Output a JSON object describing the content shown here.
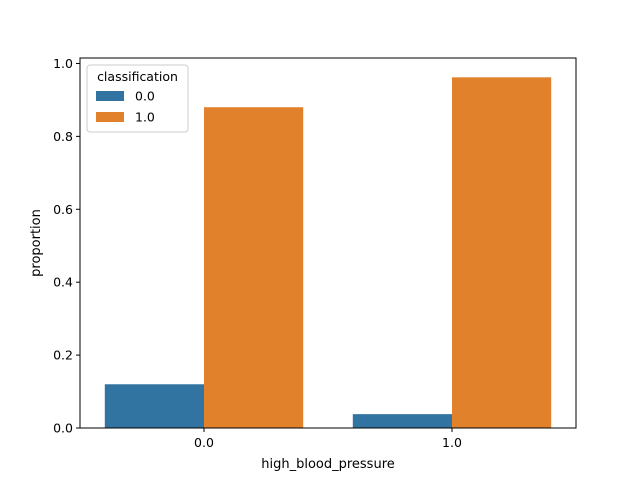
{
  "chart_data": {
    "type": "bar",
    "title": "",
    "xlabel": "high_blood_pressure",
    "ylabel": "proportion",
    "categories": [
      "0.0",
      "1.0"
    ],
    "series": [
      {
        "name": "0.0",
        "values": [
          0.12,
          0.038
        ],
        "color": "#3274a1"
      },
      {
        "name": "1.0",
        "values": [
          0.88,
          0.962
        ],
        "color": "#e1812c"
      }
    ],
    "ylim": [
      0,
      1.0
    ],
    "yticks": [
      0.0,
      0.2,
      0.4,
      0.6,
      0.8,
      1.0
    ],
    "ytick_labels": [
      "0.0",
      "0.2",
      "0.4",
      "0.6",
      "0.8",
      "1.0"
    ],
    "grid": false,
    "legend": {
      "title": "classification",
      "placement": "top-left",
      "entries": [
        "0.0",
        "1.0"
      ]
    }
  }
}
